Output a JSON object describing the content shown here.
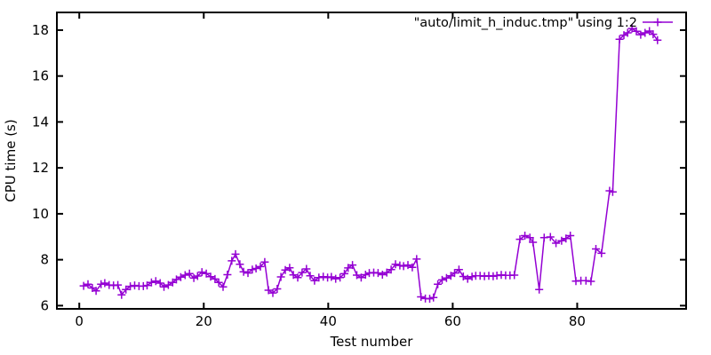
{
  "figure": {
    "background": "#ffffff",
    "border_color": "#000000",
    "text_color": "#000000"
  },
  "chart_data": {
    "type": "line",
    "title": "",
    "xlabel": "Test number",
    "ylabel": "CPU time (s)",
    "legend_label": "\"auto/limit_h_induc.tmp\" using 1:2",
    "legend_position": "top-right",
    "grid": false,
    "marker": "plus",
    "line_color": "#9400d3",
    "x_ticks": [
      0,
      20,
      40,
      60,
      80
    ],
    "y_ticks": [
      6,
      8,
      10,
      12,
      14,
      16,
      18
    ],
    "xlim": [
      -3.6,
      97.5
    ],
    "ylim": [
      5.86,
      18.77
    ],
    "series": [
      {
        "name": "\"auto/limit_h_induc.tmp\" using 1:2",
        "points": [
          [
            0.7,
            6.86
          ],
          [
            1.4,
            6.93
          ],
          [
            2.1,
            6.77
          ],
          [
            2.7,
            6.64
          ],
          [
            3.5,
            6.93
          ],
          [
            4.1,
            6.98
          ],
          [
            4.8,
            6.9
          ],
          [
            5.5,
            6.88
          ],
          [
            6.2,
            6.9
          ],
          [
            6.8,
            6.47
          ],
          [
            7.5,
            6.7
          ],
          [
            8.2,
            6.84
          ],
          [
            8.9,
            6.88
          ],
          [
            9.6,
            6.85
          ],
          [
            10.3,
            6.85
          ],
          [
            10.9,
            6.88
          ],
          [
            11.6,
            7.01
          ],
          [
            12.3,
            7.07
          ],
          [
            13.0,
            6.98
          ],
          [
            13.6,
            6.82
          ],
          [
            14.3,
            6.9
          ],
          [
            15.0,
            7.01
          ],
          [
            15.6,
            7.14
          ],
          [
            16.3,
            7.24
          ],
          [
            17.0,
            7.33
          ],
          [
            17.7,
            7.4
          ],
          [
            18.4,
            7.2
          ],
          [
            19.0,
            7.29
          ],
          [
            19.7,
            7.46
          ],
          [
            20.4,
            7.4
          ],
          [
            21.1,
            7.26
          ],
          [
            21.8,
            7.16
          ],
          [
            22.4,
            7.01
          ],
          [
            23.1,
            6.82
          ],
          [
            23.8,
            7.35
          ],
          [
            24.5,
            7.95
          ],
          [
            25.1,
            8.24
          ],
          [
            25.8,
            7.8
          ],
          [
            26.4,
            7.47
          ],
          [
            27.1,
            7.42
          ],
          [
            27.8,
            7.57
          ],
          [
            28.4,
            7.62
          ],
          [
            29.1,
            7.7
          ],
          [
            29.8,
            7.9
          ],
          [
            30.4,
            6.67
          ],
          [
            31.1,
            6.55
          ],
          [
            31.8,
            6.73
          ],
          [
            32.4,
            7.25
          ],
          [
            33.1,
            7.55
          ],
          [
            33.8,
            7.65
          ],
          [
            34.4,
            7.34
          ],
          [
            35.1,
            7.22
          ],
          [
            35.8,
            7.44
          ],
          [
            36.5,
            7.6
          ],
          [
            37.1,
            7.3
          ],
          [
            37.8,
            7.09
          ],
          [
            38.5,
            7.22
          ],
          [
            39.2,
            7.26
          ],
          [
            39.9,
            7.22
          ],
          [
            40.5,
            7.25
          ],
          [
            41.2,
            7.17
          ],
          [
            41.9,
            7.22
          ],
          [
            42.6,
            7.39
          ],
          [
            43.2,
            7.64
          ],
          [
            43.9,
            7.77
          ],
          [
            44.6,
            7.33
          ],
          [
            45.3,
            7.22
          ],
          [
            46.0,
            7.35
          ],
          [
            46.6,
            7.42
          ],
          [
            47.3,
            7.44
          ],
          [
            48.0,
            7.42
          ],
          [
            48.7,
            7.35
          ],
          [
            49.4,
            7.44
          ],
          [
            50.1,
            7.57
          ],
          [
            50.8,
            7.8
          ],
          [
            51.5,
            7.75
          ],
          [
            52.1,
            7.72
          ],
          [
            52.8,
            7.77
          ],
          [
            53.5,
            7.67
          ],
          [
            54.2,
            8.03
          ],
          [
            54.9,
            6.38
          ],
          [
            55.6,
            6.31
          ],
          [
            56.3,
            6.3
          ],
          [
            56.9,
            6.35
          ],
          [
            57.6,
            6.93
          ],
          [
            58.3,
            7.12
          ],
          [
            59.0,
            7.2
          ],
          [
            59.7,
            7.3
          ],
          [
            60.3,
            7.42
          ],
          [
            61.0,
            7.57
          ],
          [
            61.7,
            7.27
          ],
          [
            62.4,
            7.17
          ],
          [
            63.1,
            7.26
          ],
          [
            63.7,
            7.3
          ],
          [
            64.4,
            7.3
          ],
          [
            65.1,
            7.28
          ],
          [
            65.8,
            7.3
          ],
          [
            66.5,
            7.28
          ],
          [
            67.1,
            7.31
          ],
          [
            67.8,
            7.34
          ],
          [
            68.5,
            7.32
          ],
          [
            69.2,
            7.32
          ],
          [
            69.9,
            7.33
          ],
          [
            70.8,
            8.89
          ],
          [
            71.6,
            9.05
          ],
          [
            72.4,
            8.96
          ],
          [
            72.9,
            8.76
          ],
          [
            73.9,
            6.7
          ],
          [
            74.7,
            8.96
          ],
          [
            75.7,
            8.99
          ],
          [
            76.6,
            8.72
          ],
          [
            77.5,
            8.83
          ],
          [
            78.2,
            8.92
          ],
          [
            78.9,
            9.05
          ],
          [
            79.8,
            7.07
          ],
          [
            80.6,
            7.09
          ],
          [
            81.4,
            7.09
          ],
          [
            82.2,
            7.06
          ],
          [
            83.0,
            8.47
          ],
          [
            83.9,
            8.28
          ],
          [
            85.2,
            11.0
          ],
          [
            85.7,
            10.95
          ],
          [
            86.8,
            17.6
          ],
          [
            87.5,
            17.78
          ],
          [
            88.1,
            17.88
          ],
          [
            88.8,
            18.07
          ],
          [
            89.5,
            17.95
          ],
          [
            90.2,
            17.8
          ],
          [
            90.9,
            17.88
          ],
          [
            91.6,
            17.96
          ],
          [
            92.2,
            17.82
          ],
          [
            92.9,
            17.56
          ]
        ]
      }
    ]
  }
}
